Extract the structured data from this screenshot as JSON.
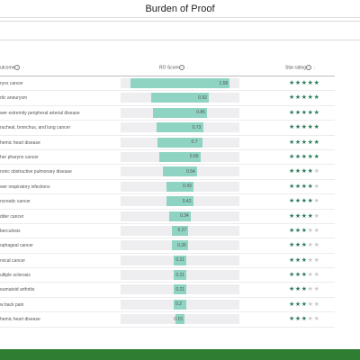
{
  "title": "Burden of Proof",
  "table": {
    "headers": {
      "outcome": "utcome",
      "info": "i",
      "outcome_sort": "↑",
      "ro": "RO Score",
      "ro_sort": "↑",
      "star": "Star rating",
      "star_sort": "↓"
    },
    "max_score": 1.58,
    "rows": [
      {
        "outcome": "rynx cancer",
        "score": "1.58",
        "stars": 5
      },
      {
        "outcome": "rtic aneurysm",
        "score": "0.92",
        "stars": 5
      },
      {
        "outcome": "wer extremity peripheral arterial disease",
        "score": "0.86",
        "stars": 5
      },
      {
        "outcome": "racheal, bronchus, and lung cancer",
        "score": "0.73",
        "stars": 5
      },
      {
        "outcome": "hemic heart disease",
        "score": "0.7",
        "stars": 5
      },
      {
        "outcome": "her pharynx cancer",
        "score": "0.65",
        "stars": 5
      },
      {
        "outcome": "ronic obstructive pulmonary disease",
        "score": "0.54",
        "stars": 4
      },
      {
        "outcome": "wer respiratory infections",
        "score": "0.43",
        "stars": 4
      },
      {
        "outcome": "ncreatic cancer",
        "score": "0.42",
        "stars": 4
      },
      {
        "outcome": "dder cancer",
        "score": "0.34",
        "stars": 4
      },
      {
        "outcome": "berculosis",
        "score": "0.27",
        "stars": 3
      },
      {
        "outcome": "ophageal cancer",
        "score": "0.26",
        "stars": 3
      },
      {
        "outcome": "rvical cancer",
        "score": "0.21",
        "stars": 3
      },
      {
        "outcome": "ultiple sclerosis",
        "score": "0.21",
        "stars": 3
      },
      {
        "outcome": "eumatoid arthritis",
        "score": "0.21",
        "stars": 3
      },
      {
        "outcome": "w back pain",
        "score": "0.2",
        "stars": 3
      },
      {
        "outcome": "hemic heart disease",
        "score": "0.15",
        "stars": 3
      }
    ]
  },
  "colors": {
    "bar": "#8fd3c2",
    "track": "#eeeef0",
    "star_on": "#2e7d5b",
    "star_off": "#c9c9c9",
    "footer": "#2e7d32"
  },
  "icons": {
    "info": "info-circle-icon",
    "star": "star-icon",
    "sort": "sort-arrow-icon"
  }
}
